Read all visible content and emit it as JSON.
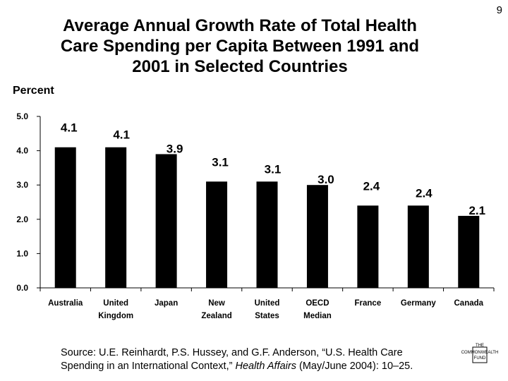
{
  "slide_number": "9",
  "title_lines": [
    "Average Annual Growth Rate of Total Health",
    "Care Spending per Capita Between 1991 and",
    "2001 in Selected Countries"
  ],
  "source": {
    "part1": "Source: U.E. Reinhardt, P.S. Hussey, and G.F. Anderson, “U.S. Health Care Spending in an International Context,” ",
    "journal": "Health Affairs",
    "part2": " (May/June 2004): 10–25."
  },
  "logo": {
    "line1": "THE",
    "line2": "COMMONWEALTH",
    "line3": "FUND"
  },
  "chart_data": {
    "type": "bar",
    "ylabel": "Percent",
    "categories": [
      [
        "Australia"
      ],
      [
        "United",
        "Kingdom"
      ],
      [
        "Japan"
      ],
      [
        "New",
        "Zealand"
      ],
      [
        "United",
        "States"
      ],
      [
        "OECD",
        "Median"
      ],
      [
        "France"
      ],
      [
        "Germany"
      ],
      [
        "Canada"
      ]
    ],
    "values": [
      4.1,
      4.1,
      3.9,
      3.1,
      3.1,
      3.0,
      2.4,
      2.4,
      2.1
    ],
    "data_labels": [
      "4.1",
      "4.1",
      "3.9",
      "3.1",
      "3.1",
      "3.0",
      "2.4",
      "2.4",
      "2.1"
    ],
    "y_ticks": [
      "0.0",
      "1.0",
      "2.0",
      "3.0",
      "4.0",
      "5.0"
    ],
    "ylim": [
      0,
      5
    ],
    "bar_color": "#000000",
    "grid": false,
    "legend": "none"
  }
}
